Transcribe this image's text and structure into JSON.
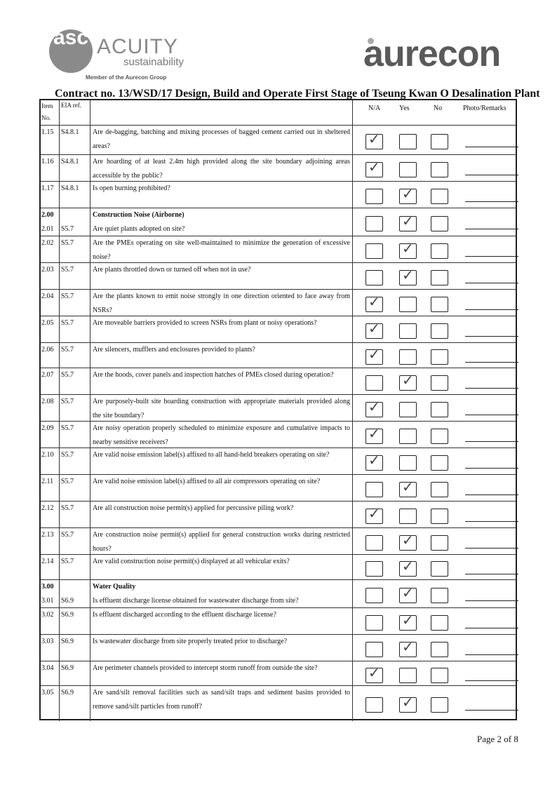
{
  "header": {
    "acuity_logo": {
      "mark": "asc",
      "name": "ACUITY",
      "sub": "sustainability",
      "member": "Member of the Aurecon Group"
    },
    "aurecon_logo": "aurecon",
    "contract": "Contract no.  13/WSD/17 Design, Build and Operate First Stage of Tseung Kwan O Desalination Plant"
  },
  "columns": {
    "item": "Item No.",
    "eia": "EIA ref.",
    "na": "N/A",
    "yes": "Yes",
    "no": "No",
    "remarks": "Photo/Remarks"
  },
  "rows": [
    {
      "item": "1.15",
      "eia": "S4.8.1",
      "question": "Are de-bagging, batching and mixing processes of bagged cement carried out in sheltered areas?",
      "answer": "na"
    },
    {
      "item": "1.16",
      "eia": "S4.8.1",
      "question": "Are hoarding of at least 2.4m high provided along the site boundary adjoining areas accessible by the public?",
      "answer": "na"
    },
    {
      "item": "1.17",
      "eia": "S4.8.1",
      "question": "Is open burning prohibited?",
      "answer": "yes"
    },
    {
      "section_no": "2.00",
      "section": "Construction Noise (Airborne)",
      "item": "2.01",
      "eia": "S5.7",
      "question": "Are quiet plants adopted on site?",
      "answer": "yes"
    },
    {
      "item": "2.02",
      "eia": "S5.7",
      "question": "Are the PMEs operating on site well-maintained to minimize the generation of excessive noise?",
      "answer": "yes"
    },
    {
      "item": "2.03",
      "eia": "S5.7",
      "question": "Are plants throttled down or turned off when not in use?",
      "answer": "yes"
    },
    {
      "item": "2.04",
      "eia": "S5.7",
      "question": "Are the plants known to emit noise strongly in one direction oriented to face away from NSRs?",
      "answer": "na"
    },
    {
      "item": "2.05",
      "eia": "S5.7",
      "question": "Are moveable barriers provided to screen NSRs from plant or noisy operations?",
      "answer": "na"
    },
    {
      "item": "2.06",
      "eia": "S5.7",
      "question": "Are silencers, mufflers and enclosures provided to plants?",
      "answer": "na"
    },
    {
      "item": "2.07",
      "eia": "S5.7",
      "question": "Are the hoods, cover panels and inspection hatches of PMEs closed during operation?",
      "answer": "yes"
    },
    {
      "item": "2.08",
      "eia": "S5.7",
      "question": "Are purposely-built site hoarding construction with appropriate materials provided along the site boundary?",
      "answer": "na"
    },
    {
      "item": "2.09",
      "eia": "S5.7",
      "question": "Are noisy operation properly scheduled to minimize exposure and cumulative impacts to nearby sensitive receivers?",
      "answer": "na"
    },
    {
      "item": "2.10",
      "eia": "S5.7",
      "question": "Are valid noise emission label(s) affixed to all hand-held breakers operating on site?",
      "answer": "na"
    },
    {
      "item": "2.11",
      "eia": "S5.7",
      "question": "Are valid noise emission label(s) affixed to all air compressors operating on site?",
      "answer": "yes"
    },
    {
      "item": "2.12",
      "eia": "S5.7",
      "question": "Are all construction noise permit(s) applied for percussive piling work?",
      "answer": "na"
    },
    {
      "item": "2.13",
      "eia": "S5.7",
      "question": "Are construction noise permit(s) applied for general construction works during restricted hours?",
      "answer": "yes"
    },
    {
      "item": "2.14",
      "eia": "S5.7",
      "question": "Are valid construction noise permit(s) displayed at all vehicular exits?",
      "answer": "yes"
    },
    {
      "section_no": "3.00",
      "section": "Water Quality",
      "item": "3.01",
      "eia": "S6.9",
      "question": "Is effluent discharge license obtained for wastewater discharge from site?",
      "answer": "yes"
    },
    {
      "item": "3.02",
      "eia": "S6.9",
      "question": "Is effluent discharged according to the effluent discharge license?",
      "answer": "yes"
    },
    {
      "item": "3.03",
      "eia": "S6.9",
      "question": "Is wastewater discharge from site properly treated prior to discharge?",
      "answer": "yes"
    },
    {
      "item": "3.04",
      "eia": "S6.9",
      "question": "Are perimeter channels provided to intercept storm runoff from outside the site?",
      "answer": "na"
    },
    {
      "item": "3.05",
      "eia": "S6.9",
      "question": "Are sand/silt removal facilities such as sand/silt traps and sediment basins provided to remove sand/silt particles from runoff?",
      "answer": "yes"
    }
  ],
  "footer": {
    "page": "Page 2 of 8"
  }
}
